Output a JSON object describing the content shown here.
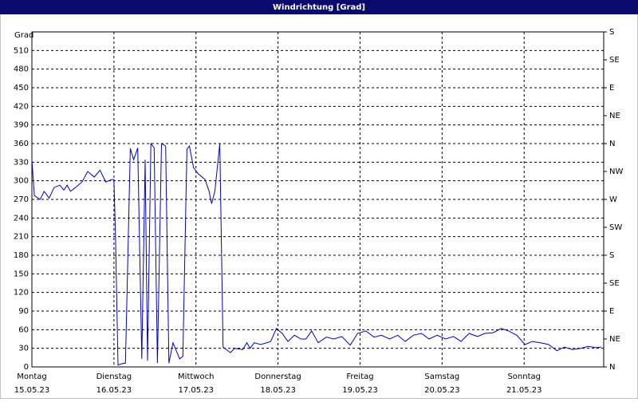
{
  "chart_data": {
    "type": "line",
    "title": "Windrichtung [Grad]",
    "y_label": "Grad",
    "xlim": [
      0,
      6.97
    ],
    "xticks": [
      {
        "value": 0,
        "label": "Montag"
      },
      {
        "value": 1,
        "label": "Dienstag"
      },
      {
        "value": 2,
        "label": "Mittwoch"
      },
      {
        "value": 3,
        "label": "Donnerstag"
      },
      {
        "value": 4,
        "label": "Freitag"
      },
      {
        "value": 5,
        "label": "Samstag"
      },
      {
        "value": 6,
        "label": "Sonntag"
      }
    ],
    "xtick_dates": [
      "15.05.23",
      "16.05.23",
      "17.05.23",
      "18.05.23",
      "19.05.23",
      "20.05.23",
      "21.05.23"
    ],
    "ylim": [
      0,
      540
    ],
    "yticks": [
      0,
      30,
      60,
      90,
      120,
      150,
      180,
      210,
      240,
      270,
      300,
      330,
      360,
      390,
      420,
      450,
      480,
      510
    ],
    "y2lim": [
      0,
      540
    ],
    "y2ticks": [
      {
        "value": 0,
        "label": "N"
      },
      {
        "value": 45,
        "label": "NE"
      },
      {
        "value": 90,
        "label": "E"
      },
      {
        "value": 135,
        "label": "SE"
      },
      {
        "value": 180,
        "label": "S"
      },
      {
        "value": 225,
        "label": "SW"
      },
      {
        "value": 270,
        "label": "W"
      },
      {
        "value": 315,
        "label": "NW"
      },
      {
        "value": 360,
        "label": "N"
      },
      {
        "value": 405,
        "label": "NE"
      },
      {
        "value": 450,
        "label": "E"
      },
      {
        "value": 495,
        "label": "SE"
      },
      {
        "value": 540,
        "label": "S"
      }
    ],
    "grid": true,
    "series": [
      {
        "color": "#0000cc",
        "x": [
          0,
          0.03,
          0.1,
          0.15,
          0.21,
          0.27,
          0.34,
          0.39,
          0.43,
          0.47,
          0.53,
          0.61,
          0.68,
          0.76,
          0.83,
          0.9,
          0.97,
          1.0,
          1.02,
          1.05,
          1.09,
          1.14,
          1.2,
          1.24,
          1.29,
          1.34,
          1.38,
          1.41,
          1.45,
          1.49,
          1.53,
          1.58,
          1.63,
          1.67,
          1.72,
          1.76,
          1.8,
          1.84,
          1.89,
          1.92,
          1.97,
          2.03,
          2.11,
          2.16,
          2.19,
          2.23,
          2.29,
          2.33,
          2.42,
          2.47,
          2.57,
          2.62,
          2.66,
          2.71,
          2.79,
          2.91,
          2.98,
          3.05,
          3.12,
          3.2,
          3.28,
          3.34,
          3.41,
          3.49,
          3.59,
          3.68,
          3.78,
          3.88,
          3.97,
          4.07,
          4.17,
          4.26,
          4.36,
          4.46,
          4.55,
          4.65,
          4.75,
          4.84,
          4.94,
          5.04,
          5.14,
          5.23,
          5.33,
          5.43,
          5.52,
          5.62,
          5.72,
          5.81,
          5.91,
          6.01,
          6.1,
          6.2,
          6.3,
          6.4,
          6.49,
          6.59,
          6.69,
          6.78,
          6.88,
          6.94
        ],
        "values": [
          334,
          276,
          270,
          283,
          272,
          289,
          293,
          285,
          293,
          283,
          289,
          298,
          315,
          306,
          317,
          298,
          302,
          302,
          206,
          3,
          5,
          6,
          352,
          334,
          353,
          13,
          334,
          10,
          360,
          353,
          6,
          360,
          356,
          6,
          39,
          26,
          13,
          17,
          351,
          356,
          321,
          311,
          302,
          283,
          263,
          283,
          360,
          32,
          23,
          30,
          28,
          39,
          30,
          39,
          36,
          41,
          62,
          54,
          41,
          51,
          45,
          45,
          58,
          39,
          48,
          45,
          49,
          35,
          54,
          58,
          48,
          51,
          45,
          51,
          41,
          51,
          54,
          45,
          51,
          45,
          49,
          41,
          54,
          49,
          54,
          55,
          62,
          58,
          51,
          36,
          41,
          39,
          36,
          26,
          32,
          28,
          30,
          33,
          31,
          32
        ]
      }
    ]
  }
}
